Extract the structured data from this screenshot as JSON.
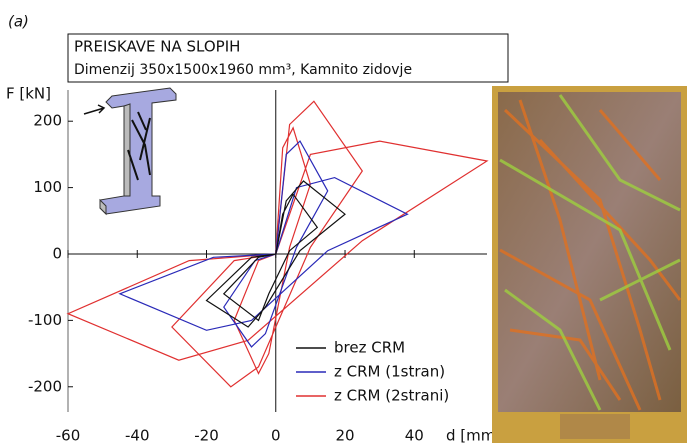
{
  "chart_data": {
    "type": "line",
    "panel_label": "(a)",
    "title": "PREISKAVE NA SLOPIH",
    "subtitle": "Dimenzij 350x1500x1960 mm³, Kamnito zidovje",
    "ylabel": "F [kN]",
    "xlabel": "d [mm]",
    "xlim": [
      -60,
      61
    ],
    "xticks": [
      -60,
      -40,
      -20,
      0,
      20,
      40
    ],
    "ylim": [
      -238,
      247
    ],
    "yticks": [
      -200,
      -100,
      0,
      100,
      200
    ],
    "legend": "lower right",
    "series": [
      {
        "name": "z CRM (2strani)",
        "color": "#e03030",
        "x": [
          0,
          2,
          5,
          10,
          4,
          -2,
          -5,
          -12,
          -5,
          0,
          4,
          11,
          25,
          10,
          -5,
          -13,
          -30,
          -12,
          0,
          10,
          30,
          61,
          25,
          -8,
          -28,
          -60,
          -25,
          0
        ],
        "values": [
          0,
          160,
          190,
          105,
          10,
          -150,
          -180,
          -100,
          -10,
          0,
          195,
          230,
          125,
          10,
          -170,
          -200,
          -110,
          -10,
          0,
          150,
          170,
          140,
          20,
          -130,
          -160,
          -90,
          -10,
          0
        ]
      },
      {
        "name": "z CRM (1stran)",
        "color": "#2a2ab8",
        "x": [
          0,
          3,
          7,
          15,
          6,
          -3,
          -7,
          -15,
          -6,
          0,
          6,
          17,
          38,
          15,
          -7,
          -20,
          -45,
          -18,
          0
        ],
        "values": [
          0,
          150,
          170,
          95,
          10,
          -120,
          -140,
          -80,
          -10,
          0,
          100,
          115,
          60,
          5,
          -100,
          -115,
          -60,
          -5,
          0
        ]
      },
      {
        "name": "brez CRM",
        "color": "#111111",
        "x": [
          0,
          2,
          5,
          12,
          4,
          -2,
          -5,
          -15,
          -5,
          0,
          3,
          8,
          20,
          7,
          -3,
          -8,
          -20,
          -7,
          0
        ],
        "values": [
          0,
          60,
          90,
          40,
          5,
          -60,
          -100,
          -60,
          -5,
          0,
          80,
          110,
          60,
          5,
          -80,
          -110,
          -70,
          -5,
          0
        ]
      }
    ]
  }
}
